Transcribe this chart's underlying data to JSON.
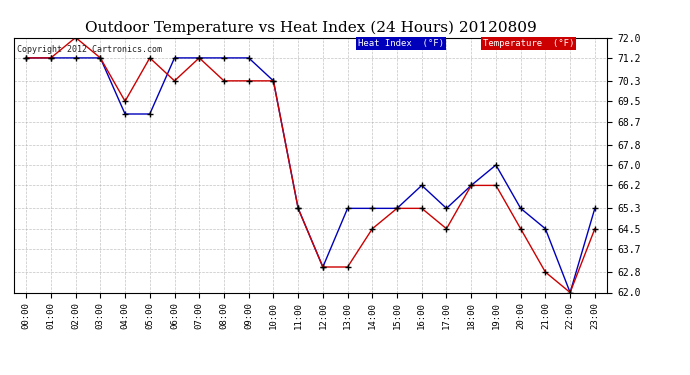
{
  "title": "Outdoor Temperature vs Heat Index (24 Hours) 20120809",
  "copyright": "Copyright 2012 Cartronics.com",
  "hours": [
    "00:00",
    "01:00",
    "02:00",
    "03:00",
    "04:00",
    "05:00",
    "06:00",
    "07:00",
    "08:00",
    "09:00",
    "10:00",
    "11:00",
    "12:00",
    "13:00",
    "14:00",
    "15:00",
    "16:00",
    "17:00",
    "18:00",
    "19:00",
    "20:00",
    "21:00",
    "22:00",
    "23:00"
  ],
  "heat_index": [
    71.2,
    71.2,
    71.2,
    71.2,
    69.0,
    69.0,
    71.2,
    71.2,
    71.2,
    71.2,
    70.3,
    65.3,
    63.0,
    65.3,
    65.3,
    65.3,
    66.2,
    65.3,
    66.2,
    67.0,
    65.3,
    64.5,
    62.0,
    65.3
  ],
  "temperature": [
    71.2,
    71.2,
    72.0,
    71.2,
    69.5,
    71.2,
    70.3,
    71.2,
    70.3,
    70.3,
    70.3,
    65.3,
    63.0,
    63.0,
    64.5,
    65.3,
    65.3,
    64.5,
    66.2,
    66.2,
    64.5,
    62.8,
    62.0,
    64.5
  ],
  "heat_index_color": "#0000bb",
  "temperature_color": "#cc0000",
  "ylim_min": 62.0,
  "ylim_max": 72.0,
  "yticks": [
    62.0,
    62.8,
    63.7,
    64.5,
    65.3,
    66.2,
    67.0,
    67.8,
    68.7,
    69.5,
    70.3,
    71.2,
    72.0
  ],
  "bg_color": "#ffffff",
  "grid_color": "#aaaaaa",
  "title_fontsize": 11,
  "legend_heat_index_bg": "#0000bb",
  "legend_temp_bg": "#cc0000",
  "figwidth": 6.9,
  "figheight": 3.75,
  "dpi": 100
}
